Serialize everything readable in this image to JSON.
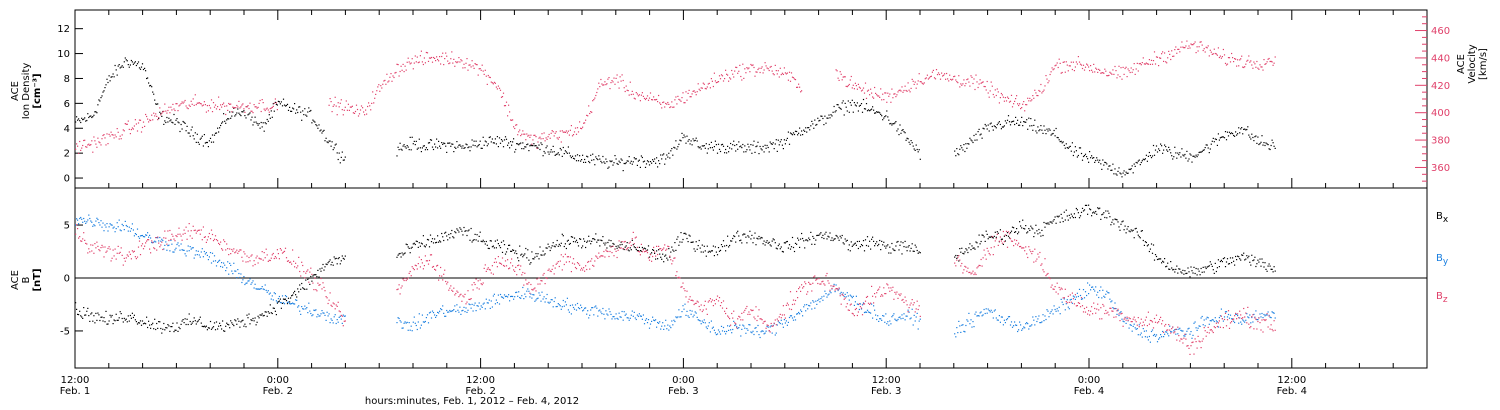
{
  "chart_data": [
    {
      "type": "scatter",
      "panel": "top",
      "ylabel_lines": [
        "ACE",
        "Ion Density",
        "[cm⁻³]"
      ],
      "ylabel2_lines": [
        "ACE",
        "Velocity",
        "[km/s]"
      ],
      "yticks": [
        0,
        2,
        4,
        6,
        8,
        10,
        12
      ],
      "ylim": [
        -0.8,
        13.5
      ],
      "y2ticks": [
        360,
        380,
        400,
        420,
        440,
        460
      ],
      "y2lim": [
        345,
        475
      ],
      "colors": {
        "density": "#000000",
        "velocity": "#e0406a"
      },
      "series": [
        {
          "axis": "left",
          "x": [
            0,
            1,
            2,
            3,
            4,
            5,
            6,
            7,
            8,
            9,
            10,
            11,
            12,
            13,
            14,
            15,
            16,
            17,
            18,
            19,
            20,
            21,
            22,
            23,
            24,
            25,
            26,
            27,
            28,
            29,
            30,
            31,
            32,
            33,
            34,
            35,
            36,
            37,
            38,
            39,
            40,
            41,
            42,
            43,
            44,
            45,
            46,
            47,
            48,
            49,
            50,
            51,
            52,
            53,
            54,
            55,
            56,
            57,
            58,
            59,
            60,
            61,
            62,
            63,
            64,
            65,
            66,
            67,
            68,
            69,
            70,
            71,
            72
          ],
          "y": [
            4.5,
            5,
            8,
            9.5,
            9,
            5,
            4.5,
            3.5,
            3,
            5,
            5.5,
            4,
            6,
            5.5,
            5,
            3,
            1.5,
            null,
            null,
            2.4,
            2.8,
            2.6,
            2.7,
            2.5,
            2.9,
            3,
            2.8,
            2.6,
            2.4,
            2,
            1.6,
            1.4,
            1.2,
            1.5,
            1.4,
            1.6,
            3.5,
            2.5,
            2.6,
            2.5,
            2.4,
            2.6,
            3,
            4,
            4.5,
            5.5,
            6,
            5.5,
            5,
            3.5,
            2,
            null,
            1.8,
            3,
            4,
            4.5,
            4.5,
            4,
            3.5,
            2.2,
            1.6,
            1,
            0.5,
            1.2,
            2.5,
            2,
            1.8,
            2.5,
            3.5,
            4,
            3,
            2.5,
            null
          ],
          "label": "density"
        },
        {
          "axis": "right",
          "x": [
            0,
            1,
            2,
            3,
            4,
            5,
            6,
            7,
            8,
            9,
            10,
            11,
            12,
            13,
            14,
            15,
            16,
            17,
            18,
            19,
            20,
            21,
            22,
            23,
            24,
            25,
            26,
            27,
            28,
            29,
            30,
            31,
            32,
            33,
            34,
            35,
            36,
            37,
            38,
            39,
            40,
            41,
            42,
            43,
            44,
            45,
            46,
            47,
            48,
            49,
            50,
            51,
            52,
            53,
            54,
            55,
            56,
            57,
            58,
            59,
            60,
            61,
            62,
            63,
            64,
            65,
            66,
            67,
            68,
            69,
            70,
            71,
            72
          ],
          "y": [
            375,
            378,
            382,
            388,
            393,
            400,
            405,
            407,
            406,
            405,
            405,
            406,
            405,
            null,
            null,
            407,
            404,
            400,
            418,
            432,
            438,
            440,
            440,
            438,
            432,
            420,
            390,
            380,
            383,
            385,
            390,
            420,
            425,
            415,
            410,
            405,
            412,
            418,
            425,
            430,
            432,
            433,
            428,
            420,
            null,
            430,
            420,
            415,
            412,
            418,
            425,
            428,
            425,
            423,
            418,
            410,
            405,
            415,
            435,
            436,
            434,
            430,
            428,
            435,
            440,
            445,
            450,
            446,
            440,
            438,
            437,
            440,
            null
          ],
          "label": "velocity"
        }
      ]
    },
    {
      "type": "scatter",
      "panel": "bottom",
      "ylabel_lines": [
        "ACE",
        "B",
        "[nT]"
      ],
      "yticks": [
        -5,
        0,
        5
      ],
      "ylim": [
        -8.5,
        8.5
      ],
      "colors": {
        "Bx": "#000000",
        "By": "#1a7fe0",
        "Bz": "#e0406a"
      },
      "series": [
        {
          "name": "Bx",
          "sub": "x",
          "x": [
            0,
            1,
            2,
            3,
            4,
            5,
            6,
            7,
            8,
            9,
            10,
            11,
            12,
            13,
            14,
            15,
            16,
            17,
            18,
            19,
            20,
            21,
            22,
            23,
            24,
            25,
            26,
            27,
            28,
            29,
            30,
            31,
            32,
            33,
            34,
            35,
            36,
            37,
            38,
            39,
            40,
            41,
            42,
            43,
            44,
            45,
            46,
            47,
            48,
            49,
            50,
            51,
            52,
            53,
            54,
            55,
            56,
            57,
            58,
            59,
            60,
            61,
            62,
            63,
            64,
            65,
            66,
            67,
            68,
            69,
            70,
            71,
            72
          ],
          "y": [
            -3,
            -3.5,
            -4,
            -3.5,
            -4,
            -4.5,
            -4.5,
            -4,
            -4.5,
            -4.5,
            -4,
            -3.5,
            -2.5,
            -1.5,
            0,
            1.5,
            2,
            null,
            null,
            2,
            3,
            3.5,
            4,
            4.5,
            3.5,
            3,
            2.5,
            2,
            3,
            3.5,
            3.5,
            3.5,
            3,
            3,
            2.5,
            2,
            4,
            3,
            2.5,
            4,
            4,
            3.5,
            3,
            3.5,
            4,
            4,
            3,
            3.5,
            3,
            3,
            2.5,
            null,
            2,
            3,
            4,
            4,
            5,
            4.5,
            5.5,
            6,
            6.5,
            6,
            5,
            4,
            2,
            1,
            0.5,
            1,
            1.5,
            2,
            1.5,
            1,
            null
          ]
        },
        {
          "name": "By",
          "sub": "y",
          "x": [
            0,
            1,
            2,
            3,
            4,
            5,
            6,
            7,
            8,
            9,
            10,
            11,
            12,
            13,
            14,
            15,
            16,
            17,
            18,
            19,
            20,
            21,
            22,
            23,
            24,
            25,
            26,
            27,
            28,
            29,
            30,
            31,
            32,
            33,
            34,
            35,
            36,
            37,
            38,
            39,
            40,
            41,
            42,
            43,
            44,
            45,
            46,
            47,
            48,
            49,
            50,
            51,
            52,
            53,
            54,
            55,
            56,
            57,
            58,
            59,
            60,
            61,
            62,
            63,
            64,
            65,
            66,
            67,
            68,
            69,
            70,
            71,
            72
          ],
          "y": [
            5.5,
            5.5,
            5,
            5,
            4,
            3.5,
            3,
            2.5,
            2,
            1,
            0,
            -1,
            -2,
            -2.5,
            -3,
            -3.5,
            -4,
            null,
            null,
            -4,
            -4.5,
            -3.5,
            -3,
            -3,
            -2.5,
            -2,
            -1.5,
            -1.5,
            -2,
            -2.5,
            -3,
            -3,
            -3.5,
            -3.5,
            -4,
            -4.5,
            -3,
            -4,
            -5,
            -4.5,
            -5,
            -5,
            -4,
            -3,
            -2,
            -1,
            -2,
            -3,
            -4,
            -3.5,
            -4,
            null,
            -5,
            -4,
            -3,
            -4,
            -4.5,
            -4,
            -3,
            -2,
            -1,
            -1.5,
            -4,
            -5,
            -5.5,
            -5,
            -5,
            -4,
            -3.5,
            -4,
            -3.5,
            -3.5,
            null
          ]
        },
        {
          "name": "Bz",
          "sub": "z",
          "x": [
            0,
            1,
            2,
            3,
            4,
            5,
            6,
            7,
            8,
            9,
            10,
            11,
            12,
            13,
            14,
            15,
            16,
            17,
            18,
            19,
            20,
            21,
            22,
            23,
            24,
            25,
            26,
            27,
            28,
            29,
            30,
            31,
            32,
            33,
            34,
            35,
            36,
            37,
            38,
            39,
            40,
            41,
            42,
            43,
            44,
            45,
            46,
            47,
            48,
            49,
            50,
            51,
            52,
            53,
            54,
            55,
            56,
            57,
            58,
            59,
            60,
            61,
            62,
            63,
            64,
            65,
            66,
            67,
            68,
            69,
            70,
            71,
            72
          ],
          "y": [
            4.5,
            3,
            2.5,
            2,
            3,
            3.5,
            4,
            4.5,
            4,
            3,
            2,
            2,
            2.5,
            1.5,
            0,
            -2,
            -4,
            null,
            null,
            -1.5,
            1,
            2,
            -0.5,
            -2,
            0,
            2,
            1,
            -1,
            0.5,
            2,
            1,
            2,
            3,
            3.5,
            2,
            3,
            -1,
            -3,
            -2,
            -4,
            -3,
            -4.5,
            -3,
            -1,
            0,
            -1,
            -3,
            -2,
            -1,
            -2,
            -3,
            null,
            2,
            0,
            3,
            4,
            3,
            2,
            -1,
            -2,
            -3,
            -3,
            -3.5,
            -4,
            -4,
            -5,
            -6.5,
            -5,
            -4,
            -3.5,
            -4,
            -4.5,
            null
          ]
        }
      ]
    }
  ],
  "xticks": [
    {
      "time": "12:00",
      "date": "Feb. 1"
    },
    {
      "time": "0:00",
      "date": "Feb. 2"
    },
    {
      "time": "12:00",
      "date": "Feb. 2"
    },
    {
      "time": "0:00",
      "date": "Feb. 3"
    },
    {
      "time": "12:00",
      "date": "Feb. 3"
    },
    {
      "time": "0:00",
      "date": "Feb. 4"
    },
    {
      "time": "12:00",
      "date": "Feb. 4"
    }
  ],
  "xlim_hours": [
    0,
    80
  ],
  "xlabel": "hours:minutes, Feb.  1, 2012 – Feb.  4, 2012",
  "legend": [
    {
      "text": "B",
      "sub": "x",
      "color": "#000000"
    },
    {
      "text": "B",
      "sub": "y",
      "color": "#1a7fe0"
    },
    {
      "text": "B",
      "sub": "z",
      "color": "#e0406a"
    }
  ]
}
